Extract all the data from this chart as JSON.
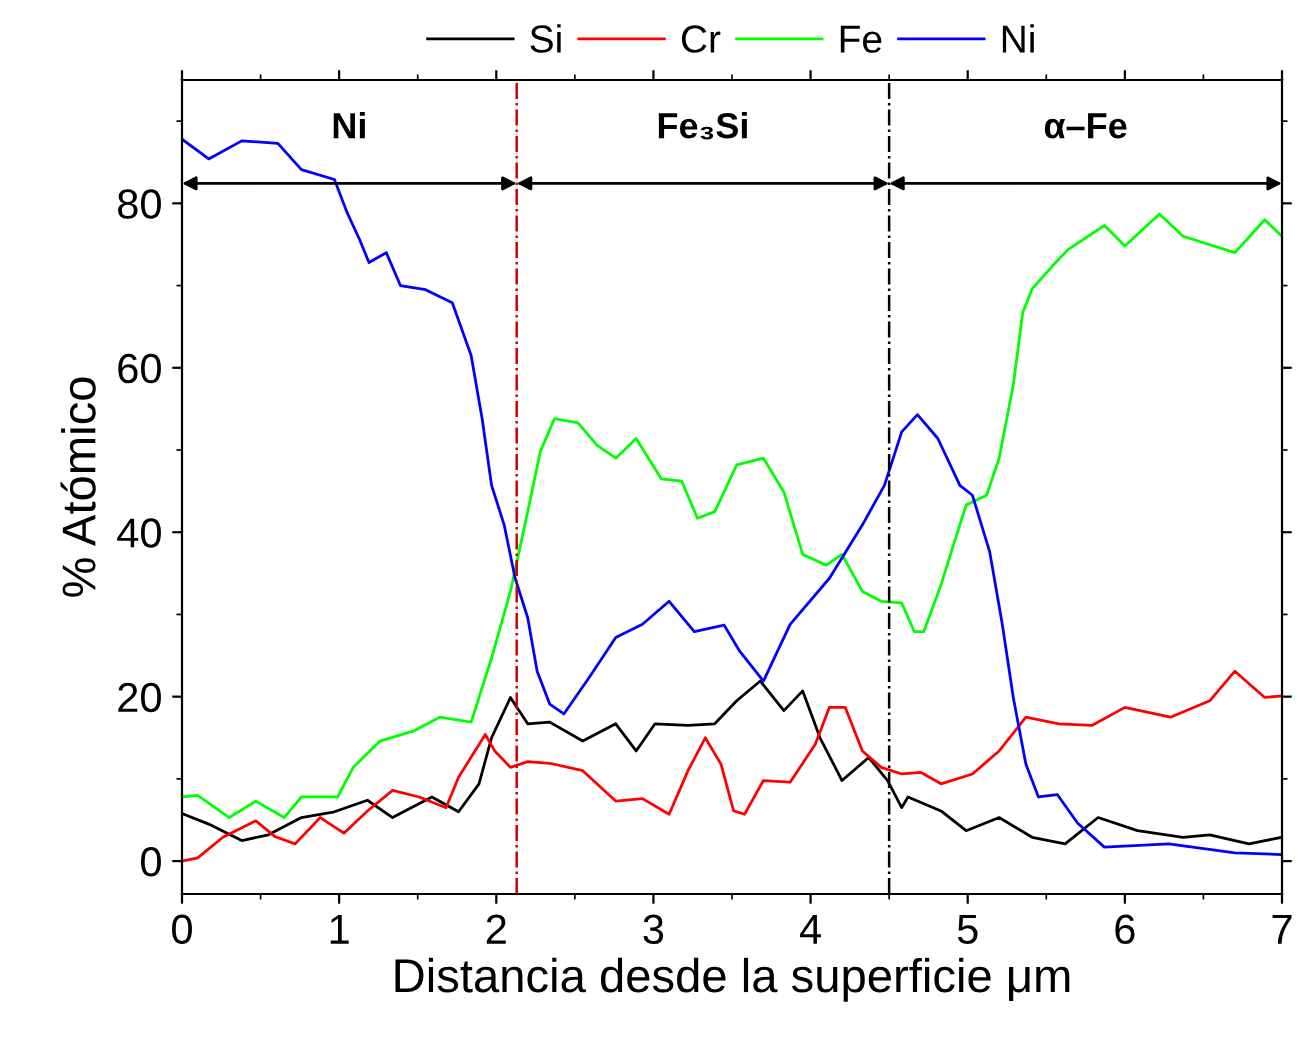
{
  "chart_data": {
    "type": "line",
    "xlabel": "Distancia desde la superficie μm",
    "ylabel": "% Atómico",
    "xlim": [
      0,
      7
    ],
    "xticks": [
      0,
      1,
      2,
      3,
      4,
      5,
      6,
      7
    ],
    "ylim": [
      -4,
      95
    ],
    "yticks": [
      0,
      20,
      40,
      60,
      80
    ],
    "legend": "top",
    "grid": false,
    "marker": "none",
    "line_style": "solid",
    "series": [
      {
        "name": "Si",
        "color": "#000000",
        "x": [
          0,
          0.17,
          0.38,
          0.55,
          0.76,
          0.97,
          1.18,
          1.34,
          1.59,
          1.76,
          1.89,
          1.97,
          2.09,
          2.2,
          2.34,
          2.55,
          2.76,
          2.89,
          3.01,
          3.22,
          3.39,
          3.53,
          3.68,
          3.83,
          3.95,
          4.06,
          4.2,
          4.37,
          4.49,
          4.58,
          4.62,
          4.83,
          4.99,
          5.2,
          5.41,
          5.62,
          5.83,
          6.08,
          6.37,
          6.54,
          6.79,
          7.0
        ],
        "values": [
          5.8,
          4.5,
          2.5,
          3.2,
          5.3,
          6,
          7.4,
          5.3,
          7.8,
          6,
          9.4,
          15,
          19.9,
          16.7,
          16.9,
          14.6,
          16.7,
          13.4,
          16.7,
          16.5,
          16.7,
          19.5,
          21.9,
          18.3,
          20.7,
          15,
          9.8,
          12.6,
          9.8,
          6.5,
          7.8,
          6.1,
          3.7,
          5.3,
          2.9,
          2.1,
          5.3,
          3.7,
          2.9,
          3.2,
          2.1,
          2.9
        ]
      },
      {
        "name": "Cr",
        "color": "#ff0000",
        "x": [
          0,
          0.1,
          0.26,
          0.47,
          0.59,
          0.72,
          0.88,
          1.03,
          1.18,
          1.34,
          1.51,
          1.68,
          1.76,
          1.93,
          1.99,
          2.09,
          2.2,
          2.34,
          2.55,
          2.76,
          2.93,
          3.1,
          3.22,
          3.33,
          3.43,
          3.51,
          3.58,
          3.7,
          3.87,
          4.03,
          4.12,
          4.22,
          4.33,
          4.45,
          4.58,
          4.7,
          4.83,
          5.03,
          5.2,
          5.37,
          5.58,
          5.79,
          6.0,
          6.29,
          6.54,
          6.7,
          6.89,
          7.0
        ],
        "values": [
          0,
          0.4,
          2.9,
          4.9,
          3,
          2.1,
          5.3,
          3.4,
          6.1,
          8.6,
          7.8,
          6.5,
          10.2,
          15.4,
          13.4,
          11.4,
          12.1,
          11.9,
          11,
          7.3,
          7.6,
          5.7,
          11,
          15,
          11.8,
          6.1,
          5.7,
          9.8,
          9.6,
          14.2,
          18.7,
          18.7,
          13.4,
          11.4,
          10.6,
          10.8,
          9.4,
          10.6,
          13.4,
          17.5,
          16.7,
          16.5,
          18.7,
          17.5,
          19.5,
          23.1,
          19.9,
          20.1
        ]
      },
      {
        "name": "Fe",
        "color": "#00ff00",
        "x": [
          0,
          0.1,
          0.3,
          0.47,
          0.65,
          0.76,
          0.99,
          1.09,
          1.26,
          1.47,
          1.64,
          1.84,
          1.97,
          2.09,
          2.2,
          2.28,
          2.37,
          2.52,
          2.64,
          2.76,
          2.89,
          3.05,
          3.18,
          3.28,
          3.39,
          3.53,
          3.7,
          3.83,
          3.95,
          4.1,
          4.2,
          4.33,
          4.45,
          4.58,
          4.66,
          4.72,
          4.83,
          4.91,
          4.99,
          5.12,
          5.2,
          5.29,
          5.35,
          5.41,
          5.54,
          5.64,
          5.87,
          6.0,
          6.22,
          6.37,
          6.7,
          6.89,
          7.0
        ],
        "values": [
          7.8,
          8,
          5.3,
          7.3,
          5.3,
          7.8,
          7.8,
          11.4,
          14.6,
          15.8,
          17.5,
          16.9,
          24.7,
          32.8,
          42.5,
          49.8,
          53.8,
          53.3,
          50.6,
          49,
          51.4,
          46.5,
          46.2,
          41.7,
          42.5,
          48.2,
          49,
          44.9,
          37.3,
          36,
          37.3,
          32.8,
          31.6,
          31.4,
          27.9,
          27.9,
          33.6,
          38.5,
          43.3,
          44.5,
          49,
          57.9,
          66.7,
          69.6,
          72.4,
          74.4,
          77.3,
          74.8,
          78.7,
          76,
          74,
          78,
          76
        ]
      },
      {
        "name": "Ni",
        "color": "#0000ff",
        "x": [
          0,
          0.17,
          0.38,
          0.61,
          0.76,
          0.97,
          1.05,
          1.13,
          1.19,
          1.3,
          1.39,
          1.55,
          1.72,
          1.84,
          1.91,
          1.97,
          2.05,
          2.12,
          2.2,
          2.26,
          2.34,
          2.43,
          2.59,
          2.76,
          2.93,
          3.1,
          3.26,
          3.45,
          3.55,
          3.7,
          3.87,
          4.12,
          4.33,
          4.47,
          4.58,
          4.68,
          4.81,
          4.95,
          5.03,
          5.14,
          5.22,
          5.29,
          5.37,
          5.45,
          5.57,
          5.7,
          5.87,
          6.28,
          6.7,
          7.0
        ],
        "values": [
          87.8,
          85.4,
          87.6,
          87.3,
          84.1,
          82.9,
          78.9,
          75.6,
          72.8,
          74,
          70,
          69.5,
          67.9,
          61.5,
          53.8,
          45.7,
          40.9,
          34.4,
          29.6,
          23.1,
          19.1,
          17.9,
          22.3,
          27.2,
          28.8,
          31.6,
          27.9,
          28.7,
          25.5,
          21.9,
          28.8,
          34.4,
          40.9,
          45.7,
          52.2,
          54.3,
          51.4,
          45.7,
          44.5,
          37.6,
          28.8,
          19.9,
          11.8,
          7.8,
          8.1,
          4.6,
          1.7,
          2.1,
          1.0,
          0.8
        ]
      }
    ],
    "ref_lines": [
      {
        "axis": "x",
        "value": 2.13,
        "color": "#cc0000",
        "line_style": "dashdot"
      },
      {
        "axis": "x",
        "value": 4.5,
        "color": "#000000",
        "line_style": "dashdot"
      }
    ],
    "annotations": [
      "Ni",
      "Fe₃Si",
      "α–Fe"
    ]
  }
}
